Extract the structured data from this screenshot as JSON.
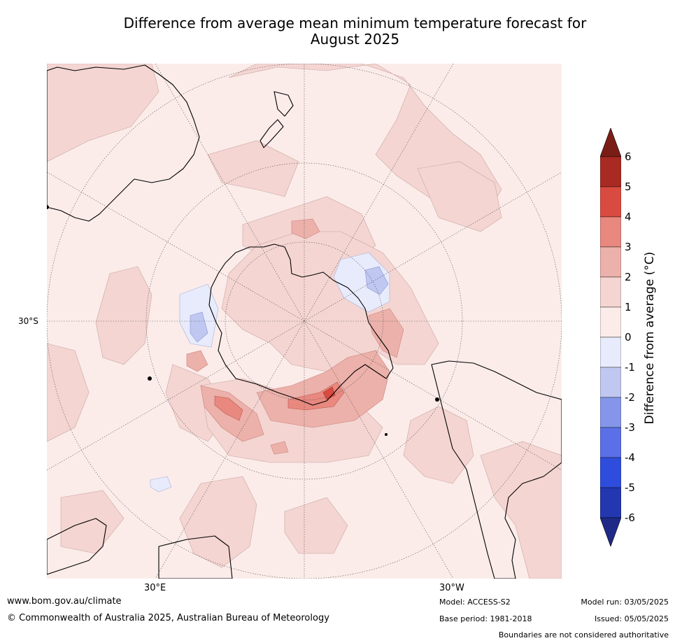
{
  "title_line1": "Difference from average mean minimum temperature forecast for",
  "title_line2": "August 2025",
  "map": {
    "projection": "south-polar-stereographic",
    "lat_label": "30°S",
    "lon_labels": [
      "30°E",
      "30°W"
    ],
    "fill_colors": {
      "0_to_1": "#fbecea",
      "1_to_2": "#f4d5d2",
      "2_to_3": "#ecb1aa",
      "3_to_4": "#e8887f",
      "4_to_5": "#d94b40",
      "minus1_to_0": "#e8ebfb",
      "minus2_to_minus1": "#c0c8f1"
    }
  },
  "colorbar": {
    "label": "Difference from average ($^\\circ$C)",
    "label_display": "Difference from average (°C)",
    "ticks": [
      "6",
      "5",
      "4",
      "3",
      "2",
      "1",
      "0",
      "-1",
      "-2",
      "-3",
      "-4",
      "-5",
      "-6"
    ],
    "colors_top_to_bottom": [
      "#a82a23",
      "#d94b40",
      "#e8887f",
      "#ecb1aa",
      "#f4d5d2",
      "#fbecea",
      "#e8ebfb",
      "#c0c8f1",
      "#8596ea",
      "#5b70e6",
      "#2f4ddc",
      "#2337b0"
    ],
    "over_color": "#7b1d17",
    "under_color": "#1f2a88"
  },
  "footer": {
    "website": "www.bom.gov.au/climate",
    "copyright": "© Commonwealth of Australia 2025, Australian Bureau of Meteorology",
    "model": "Model: ACCESS-S2",
    "base_period": "Base period: 1981-2018",
    "model_run": "Model run: 03/05/2025",
    "issued": "Issued: 05/05/2025",
    "disclaimer": "Boundaries are not considered authoritative"
  }
}
